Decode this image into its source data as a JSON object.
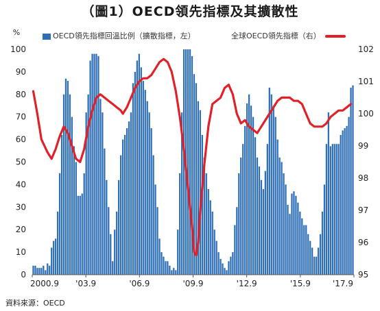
{
  "title": "（圖1）OECD領先指標及其擴散性",
  "legend": {
    "bars": "OECD領先指標回溫比例（擴散指標，左）",
    "line": "全球OECD領先指標（右）"
  },
  "source": "資料來源：OECD",
  "left_axis_unit": "%",
  "colors": {
    "bars": "#2e6fb6",
    "line": "#e02128"
  },
  "chart_data": {
    "type": "bar",
    "title": "（圖1）OECD領先指標及其擴散性",
    "start": "2000.9",
    "x_tick_labels": [
      "2000.9",
      "'03.9",
      "'06.9",
      "'09.9",
      "'12.9",
      "'15.9",
      "'17.9"
    ],
    "left_axis": {
      "ylim": [
        0,
        100
      ],
      "ticks": [
        0,
        10,
        20,
        30,
        40,
        50,
        60,
        70,
        80,
        90,
        100
      ]
    },
    "right_axis": {
      "ylim": [
        95,
        102
      ],
      "ticks": [
        95,
        96,
        97,
        98,
        99,
        100,
        101,
        102
      ]
    },
    "series": [
      {
        "name": "OECD領先指標回溫比例（擴散指標，左）",
        "kind": "bar",
        "axis": "left",
        "values": [
          4,
          4,
          3,
          3,
          3,
          4,
          2,
          5,
          4,
          12,
          15,
          16,
          28,
          45,
          62,
          80,
          87,
          86,
          80,
          70,
          57,
          50,
          35,
          35,
          36,
          45,
          72,
          80,
          95,
          98,
          98,
          98,
          97,
          78,
          72,
          56,
          42,
          30,
          18,
          6,
          20,
          28,
          42,
          53,
          60,
          62,
          65,
          68,
          72,
          85,
          90,
          95,
          98,
          92,
          86,
          82,
          77,
          72,
          65,
          53,
          40,
          30,
          16,
          10,
          8,
          6,
          6,
          4,
          2,
          3,
          2,
          20,
          45,
          72,
          100,
          100,
          100,
          100,
          97,
          89,
          85,
          77,
          73,
          62,
          52,
          45,
          38,
          33,
          28,
          20,
          15,
          10,
          7,
          5,
          3,
          2,
          6,
          8,
          10,
          22,
          30,
          45,
          52,
          58,
          66,
          76,
          80,
          75,
          70,
          61,
          52,
          48,
          42,
          38,
          46,
          58,
          83,
          80,
          75,
          70,
          60,
          52,
          50,
          45,
          40,
          31,
          27,
          36,
          37,
          35,
          32,
          28,
          25,
          22,
          22,
          18,
          15,
          12,
          8,
          8,
          12,
          18,
          28,
          40,
          58,
          72,
          57,
          58,
          58,
          58,
          58,
          62,
          64,
          65,
          66,
          70,
          83,
          84
        ]
      },
      {
        "name": "全球OECD領先指標（右）",
        "kind": "line",
        "axis": "right",
        "points": [
          [
            0,
            100.7
          ],
          [
            2,
            100.0
          ],
          [
            4,
            99.2
          ],
          [
            7,
            98.8
          ],
          [
            9,
            98.6
          ],
          [
            11,
            98.9
          ],
          [
            13,
            99.3
          ],
          [
            15,
            99.6
          ],
          [
            17,
            99.4
          ],
          [
            19,
            99.0
          ],
          [
            21,
            98.6
          ],
          [
            23,
            98.5
          ],
          [
            25,
            98.9
          ],
          [
            27,
            99.6
          ],
          [
            29,
            100.1
          ],
          [
            31,
            100.5
          ],
          [
            33,
            100.6
          ],
          [
            35,
            100.5
          ],
          [
            37,
            100.4
          ],
          [
            39,
            100.3
          ],
          [
            41,
            100.2
          ],
          [
            43,
            100.1
          ],
          [
            44,
            100.0
          ],
          [
            46,
            100.2
          ],
          [
            48,
            100.5
          ],
          [
            50,
            100.8
          ],
          [
            52,
            101.0
          ],
          [
            54,
            101.1
          ],
          [
            56,
            101.1
          ],
          [
            58,
            101.2
          ],
          [
            60,
            101.4
          ],
          [
            62,
            101.6
          ],
          [
            64,
            101.7
          ],
          [
            66,
            101.6
          ],
          [
            68,
            101.3
          ],
          [
            70,
            100.7
          ],
          [
            72,
            99.9
          ],
          [
            74,
            98.9
          ],
          [
            76,
            97.7
          ],
          [
            78,
            96.5
          ],
          [
            79,
            95.7
          ],
          [
            80,
            95.6
          ],
          [
            81,
            96.0
          ],
          [
            82,
            97.0
          ],
          [
            84,
            98.4
          ],
          [
            86,
            99.6
          ],
          [
            88,
            100.3
          ],
          [
            90,
            100.4
          ],
          [
            92,
            100.5
          ],
          [
            94,
            100.8
          ],
          [
            96,
            100.9
          ],
          [
            98,
            100.6
          ],
          [
            100,
            100.0
          ],
          [
            102,
            99.7
          ],
          [
            104,
            99.8
          ],
          [
            106,
            99.6
          ],
          [
            108,
            99.5
          ],
          [
            110,
            99.4
          ],
          [
            112,
            99.6
          ],
          [
            114,
            99.8
          ],
          [
            116,
            100.0
          ],
          [
            118,
            100.2
          ],
          [
            120,
            100.4
          ],
          [
            122,
            100.5
          ],
          [
            124,
            100.5
          ],
          [
            126,
            100.5
          ],
          [
            128,
            100.4
          ],
          [
            130,
            100.4
          ],
          [
            132,
            100.3
          ],
          [
            134,
            100.0
          ],
          [
            136,
            99.7
          ],
          [
            138,
            99.6
          ],
          [
            140,
            99.6
          ],
          [
            142,
            99.6
          ],
          [
            144,
            99.7
          ],
          [
            146,
            99.9
          ],
          [
            148,
            100.0
          ],
          [
            150,
            100.1
          ],
          [
            152,
            100.1
          ],
          [
            154,
            100.2
          ],
          [
            156,
            100.3
          ]
        ]
      }
    ]
  }
}
